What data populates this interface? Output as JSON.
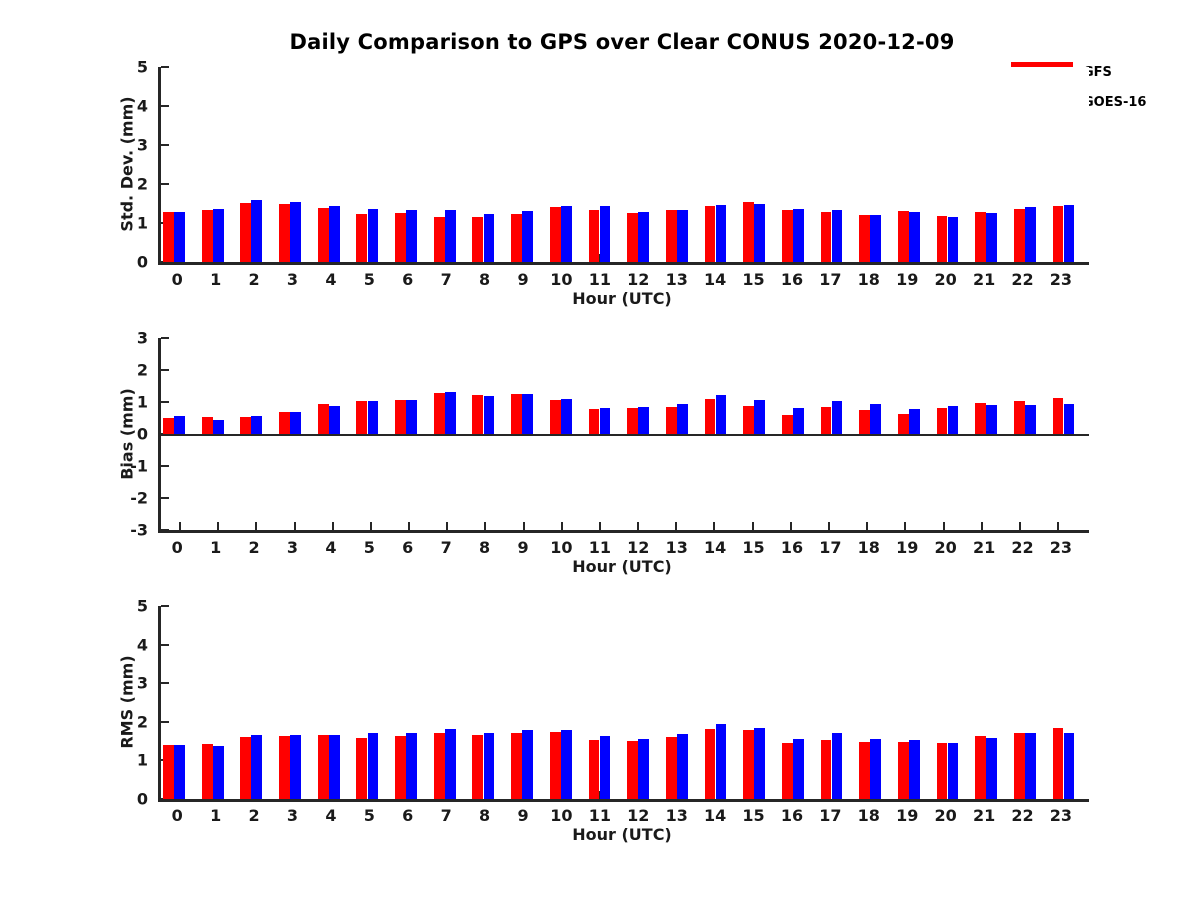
{
  "title": "Daily Comparison to GPS over Clear CONUS 2020-12-09",
  "legend": {
    "items": [
      {
        "label": "GFS",
        "color": "#ff0000"
      },
      {
        "label": "GOES-16",
        "color": "#0000ff"
      }
    ]
  },
  "colors": {
    "gfs": "#ff0000",
    "goes16": "#0000ff",
    "axis": "#262626",
    "background": "#ffffff"
  },
  "chart_data": [
    {
      "type": "bar",
      "ylabel": "Std. Dev. (mm)",
      "xlabel": "Hour (UTC)",
      "ylim": [
        0,
        5
      ],
      "yticks": [
        5,
        4,
        3,
        2,
        1,
        0
      ],
      "grid": false,
      "legend_position": "top-right",
      "categories": [
        "0",
        "1",
        "2",
        "3",
        "4",
        "5",
        "6",
        "7",
        "8",
        "9",
        "10",
        "11",
        "12",
        "13",
        "14",
        "15",
        "16",
        "17",
        "18",
        "19",
        "20",
        "21",
        "22",
        "23"
      ],
      "series": [
        {
          "name": "GFS",
          "color": "#ff0000",
          "values": [
            1.28,
            1.33,
            1.52,
            1.48,
            1.38,
            1.22,
            1.25,
            1.15,
            1.15,
            1.22,
            1.4,
            1.33,
            1.25,
            1.34,
            1.44,
            1.53,
            1.34,
            1.27,
            1.21,
            1.3,
            1.19,
            1.27,
            1.37,
            1.43
          ]
        },
        {
          "name": "GOES-16",
          "color": "#0000ff",
          "values": [
            1.28,
            1.37,
            1.58,
            1.53,
            1.44,
            1.37,
            1.33,
            1.33,
            1.24,
            1.32,
            1.44,
            1.43,
            1.29,
            1.34,
            1.47,
            1.48,
            1.35,
            1.34,
            1.21,
            1.27,
            1.15,
            1.25,
            1.42,
            1.45
          ]
        }
      ]
    },
    {
      "type": "bar",
      "ylabel": "Bias (mm)",
      "xlabel": "Hour (UTC)",
      "ylim": [
        -3,
        3
      ],
      "yticks": [
        3,
        2,
        1,
        0,
        -1,
        -2,
        -3
      ],
      "grid": false,
      "categories": [
        "0",
        "1",
        "2",
        "3",
        "4",
        "5",
        "6",
        "7",
        "8",
        "9",
        "10",
        "11",
        "12",
        "13",
        "14",
        "15",
        "16",
        "17",
        "18",
        "19",
        "20",
        "21",
        "22",
        "23"
      ],
      "series": [
        {
          "name": "GFS",
          "color": "#ff0000",
          "values": [
            0.5,
            0.52,
            0.52,
            0.68,
            0.93,
            1.02,
            1.07,
            1.27,
            1.22,
            1.25,
            1.05,
            0.77,
            0.8,
            0.85,
            1.1,
            0.88,
            0.6,
            0.83,
            0.75,
            0.63,
            0.82,
            0.96,
            1.03,
            1.12
          ]
        },
        {
          "name": "GOES-16",
          "color": "#0000ff",
          "values": [
            0.55,
            0.45,
            0.55,
            0.68,
            0.88,
            1.02,
            1.07,
            1.3,
            1.2,
            1.25,
            1.1,
            0.8,
            0.83,
            0.93,
            1.22,
            1.07,
            0.8,
            1.03,
            0.93,
            0.78,
            0.86,
            0.92,
            0.9,
            0.94
          ]
        }
      ]
    },
    {
      "type": "bar",
      "ylabel": "RMS (mm)",
      "xlabel": "Hour (UTC)",
      "ylim": [
        0,
        5
      ],
      "yticks": [
        5,
        4,
        3,
        2,
        1,
        0
      ],
      "grid": false,
      "categories": [
        "0",
        "1",
        "2",
        "3",
        "4",
        "5",
        "6",
        "7",
        "8",
        "9",
        "10",
        "11",
        "12",
        "13",
        "14",
        "15",
        "16",
        "17",
        "18",
        "19",
        "20",
        "21",
        "22",
        "23"
      ],
      "series": [
        {
          "name": "GFS",
          "color": "#ff0000",
          "values": [
            1.4,
            1.42,
            1.6,
            1.62,
            1.65,
            1.57,
            1.62,
            1.7,
            1.66,
            1.72,
            1.73,
            1.52,
            1.5,
            1.6,
            1.82,
            1.8,
            1.46,
            1.53,
            1.48,
            1.47,
            1.46,
            1.62,
            1.72,
            1.83
          ]
        },
        {
          "name": "GOES-16",
          "color": "#0000ff",
          "values": [
            1.4,
            1.38,
            1.67,
            1.65,
            1.67,
            1.7,
            1.7,
            1.82,
            1.72,
            1.78,
            1.8,
            1.62,
            1.55,
            1.68,
            1.94,
            1.84,
            1.55,
            1.7,
            1.55,
            1.52,
            1.46,
            1.58,
            1.7,
            1.72
          ]
        }
      ]
    }
  ]
}
